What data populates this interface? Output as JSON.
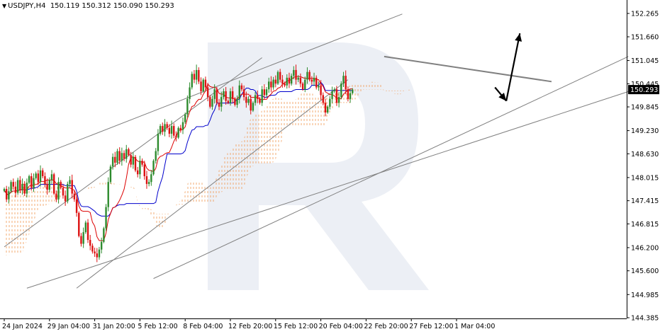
{
  "header": {
    "symbol": "USDJPY,H4",
    "ohlc": "150.119 150.312 150.090 150.293"
  },
  "chart_data": {
    "type": "candlestick",
    "ylim": [
      144.385,
      152.26
    ],
    "y_ticks": [
      "152.265",
      "151.660",
      "151.045",
      "150.445",
      "149.845",
      "149.230",
      "148.630",
      "148.015",
      "147.415",
      "146.815",
      "146.200",
      "145.600",
      "144.985",
      "144.385"
    ],
    "x_ticks": [
      {
        "label": "24 Jan 2024",
        "bar": 0
      },
      {
        "label": "29 Jan 04:00",
        "bar": 20
      },
      {
        "label": "31 Jan 20:00",
        "bar": 40
      },
      {
        "label": "5 Feb 12:00",
        "bar": 60
      },
      {
        "label": "8 Feb 04:00",
        "bar": 80
      },
      {
        "label": "12 Feb 20:00",
        "bar": 100
      },
      {
        "label": "15 Feb 12:00",
        "bar": 120
      },
      {
        "label": "20 Feb 04:00",
        "bar": 140
      },
      {
        "label": "22 Feb 20:00",
        "bar": 160
      },
      {
        "label": "27 Feb 12:00",
        "bar": 180
      },
      {
        "label": "1 Mar 04:00",
        "bar": 200
      }
    ],
    "current_price": "150.293",
    "closes": [
      147.72,
      147.45,
      147.66,
      147.9,
      147.78,
      147.62,
      147.95,
      147.7,
      147.85,
      147.6,
      147.88,
      148.05,
      147.75,
      148.0,
      148.12,
      147.9,
      148.2,
      148.05,
      147.85,
      147.7,
      147.95,
      148.1,
      147.6,
      147.45,
      147.9,
      147.75,
      147.55,
      147.4,
      147.85,
      147.95,
      147.6,
      147.45,
      147.1,
      146.5,
      146.3,
      146.6,
      146.85,
      146.4,
      146.25,
      146.1,
      146.05,
      145.95,
      146.15,
      146.35,
      146.7,
      147.25,
      147.9,
      148.3,
      148.55,
      148.4,
      148.7,
      148.45,
      148.65,
      148.5,
      148.75,
      148.6,
      148.35,
      148.55,
      148.2,
      148.1,
      148.45,
      148.35,
      148.05,
      147.85,
      147.9,
      148.1,
      148.45,
      148.7,
      149.15,
      149.35,
      149.2,
      149.4,
      149.3,
      149.15,
      149.35,
      149.1,
      149.05,
      149.3,
      149.25,
      149.45,
      149.65,
      150.05,
      150.35,
      150.7,
      150.55,
      150.8,
      150.5,
      150.25,
      150.55,
      150.35,
      150.1,
      149.85,
      150.05,
      150.3,
      149.95,
      149.85,
      150.1,
      150.25,
      150.0,
      149.95,
      150.25,
      150.05,
      149.9,
      150.05,
      150.4,
      150.3,
      150.1,
      149.95,
      150.05,
      149.75,
      149.95,
      150.15,
      150.05,
      149.95,
      150.3,
      150.15,
      150.3,
      150.5,
      150.35,
      150.55,
      150.45,
      150.75,
      150.55,
      150.45,
      150.4,
      150.6,
      150.45,
      150.65,
      150.8,
      150.55,
      150.6,
      150.45,
      150.3,
      150.55,
      150.75,
      150.55,
      150.5,
      150.6,
      150.35,
      150.4,
      150.15,
      149.95,
      149.7,
      149.85,
      150.05,
      150.25,
      150.3,
      149.95,
      150.1,
      150.45,
      150.65,
      150.3,
      150.05,
      150.2,
      150.293
    ],
    "trendlines": [
      {
        "b1": 0,
        "p1": 148.23,
        "b2": 176,
        "p2": 152.25,
        "color": "#808080"
      },
      {
        "b1": 0,
        "p1": 146.22,
        "b2": 114,
        "p2": 151.12,
        "color": "#808080"
      },
      {
        "b1": 32,
        "p1": 145.15,
        "b2": 152,
        "p2": 150.55,
        "color": "#808080"
      },
      {
        "b1": 10,
        "p1": 145.15,
        "b2": 279,
        "p2": 150.3,
        "color": "#808080"
      },
      {
        "b1": 66,
        "p1": 145.4,
        "b2": 276,
        "p2": 151.15,
        "color": "#808080"
      },
      {
        "b1": 168,
        "p1": 151.15,
        "b2": 242,
        "p2": 150.5,
        "color": "#808080"
      }
    ],
    "arrows": [
      {
        "from": [
          217,
          150.35
        ],
        "to": [
          222,
          150.0
        ],
        "color": "#000000"
      },
      {
        "from": [
          222,
          150.0
        ],
        "to": [
          228,
          151.75
        ],
        "color": "#000000"
      }
    ]
  }
}
